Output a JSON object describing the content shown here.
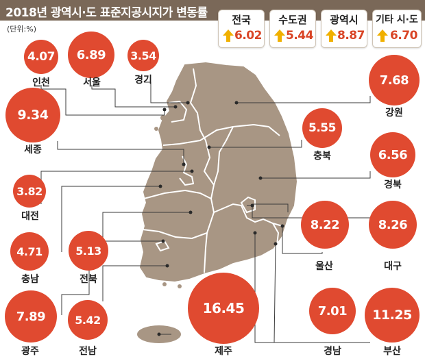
{
  "title": "2018년 광역시·도 표준지공시지가 변동률",
  "unit": "(단위:%)",
  "summary": [
    {
      "label": "전국",
      "value": "6.02"
    },
    {
      "label": "수도권",
      "value": "5.44"
    },
    {
      "label": "광역시",
      "value": "8.87"
    },
    {
      "label": "기타 시·도",
      "value": "6.70"
    }
  ],
  "regions": [
    {
      "name": "인천",
      "value": "4.07"
    },
    {
      "name": "서울",
      "value": "6.89"
    },
    {
      "name": "경기",
      "value": "3.54"
    },
    {
      "name": "강원",
      "value": "7.68"
    },
    {
      "name": "세종",
      "value": "9.34"
    },
    {
      "name": "충북",
      "value": "5.55"
    },
    {
      "name": "경북",
      "value": "6.56"
    },
    {
      "name": "대전",
      "value": "3.82"
    },
    {
      "name": "울산",
      "value": "8.22"
    },
    {
      "name": "대구",
      "value": "8.26"
    },
    {
      "name": "충남",
      "value": "4.71"
    },
    {
      "name": "전북",
      "value": "5.13"
    },
    {
      "name": "광주",
      "value": "7.89"
    },
    {
      "name": "전남",
      "value": "5.42"
    },
    {
      "name": "제주",
      "value": "16.45"
    },
    {
      "name": "경남",
      "value": "7.01"
    },
    {
      "name": "부산",
      "value": "11.25"
    }
  ],
  "colors": {
    "header": "#7a6858",
    "map_land": "#a89684",
    "bubble": "#e04a30",
    "arrow": "#f0b000",
    "summary_value": "#d94425"
  },
  "icons": [
    "up-arrow-icon"
  ]
}
